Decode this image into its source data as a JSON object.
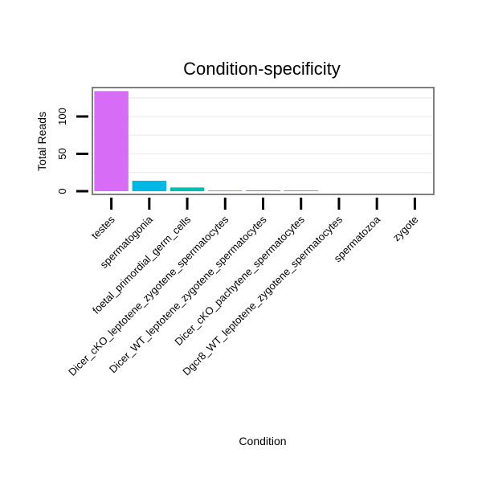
{
  "chart_data": {
    "type": "bar",
    "title": "Condition-specificity",
    "xlabel": "Condition",
    "ylabel": "Total Reads",
    "categories": [
      "testes",
      "spermatogonia",
      "foetal_primordial_germ_cells",
      "Dicer_cKO_leptotene_zygotene_spermatocytes",
      "Dicer_WT_leptotene_zygotene_spermatocytes",
      "Dicer_cKO_pachytene_spermatocytes",
      "Dgcr8_WT_leptotene_zygotene_spermatocytes",
      "spermatozoa",
      "zygote"
    ],
    "values": [
      134,
      14,
      5,
      1,
      1,
      1,
      0,
      0,
      0
    ],
    "colors": [
      "#d76cf7",
      "#00b8e5",
      "#00bfb0",
      "#c4a000",
      "#00b0c8",
      "#c49a00",
      "#9aa000",
      "#8a8a8a",
      "#8a8a8a"
    ],
    "ylim": [
      0,
      140
    ],
    "yticks": [
      0,
      50,
      100
    ],
    "grid": true,
    "legend": "none"
  }
}
